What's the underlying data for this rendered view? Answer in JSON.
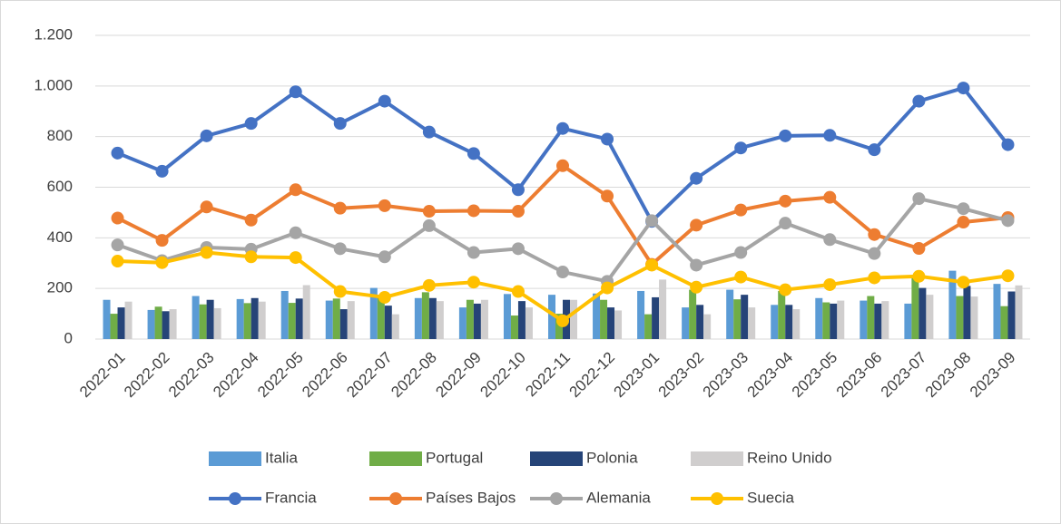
{
  "chart_data": {
    "type": "combo",
    "categories": [
      "2022-01",
      "2022-02",
      "2022-03",
      "2022-04",
      "2022-05",
      "2022-06",
      "2022-07",
      "2022-08",
      "2022-09",
      "2022-10",
      "2022-11",
      "2022-12",
      "2023-01",
      "2023-02",
      "2023-03",
      "2023-04",
      "2023-05",
      "2023-06",
      "2023-07",
      "2023-08",
      "2023-09"
    ],
    "ylim": [
      0,
      1200
    ],
    "yticks": [
      0,
      200,
      400,
      600,
      800,
      {
        "value": 1000,
        "label": "1.000"
      },
      {
        "value": 1200,
        "label": "1.200"
      }
    ],
    "grid": true,
    "series": [
      {
        "name": "Italia",
        "type": "bar",
        "color": "#5b9bd5",
        "values": [
          155,
          115,
          170,
          158,
          190,
          152,
          202,
          162,
          125,
          178,
          175,
          180,
          190,
          125,
          195,
          135,
          162,
          152,
          140,
          270,
          218
        ]
      },
      {
        "name": "Portugal",
        "type": "bar",
        "color": "#70ad47",
        "values": [
          100,
          128,
          137,
          142,
          143,
          160,
          170,
          185,
          155,
          93,
          100,
          155,
          98,
          195,
          157,
          190,
          145,
          170,
          250,
          170,
          130
        ]
      },
      {
        "name": "Polonia",
        "type": "bar",
        "color": "#264478",
        "values": [
          125,
          110,
          155,
          162,
          160,
          118,
          132,
          162,
          140,
          150,
          155,
          125,
          165,
          135,
          175,
          135,
          140,
          140,
          202,
          210,
          188
        ]
      },
      {
        "name": "Reino Unido",
        "type": "bar",
        "color": "#d0cece",
        "values": [
          148,
          118,
          122,
          148,
          213,
          150,
          98,
          150,
          155,
          125,
          155,
          113,
          235,
          98,
          125,
          118,
          152,
          150,
          175,
          168,
          212
        ]
      },
      {
        "name": "Francia",
        "type": "line",
        "color": "#4472c4",
        "values": [
          735,
          663,
          803,
          852,
          977,
          852,
          940,
          818,
          733,
          590,
          832,
          790,
          465,
          635,
          755,
          803,
          805,
          748,
          940,
          992,
          768
        ]
      },
      {
        "name": "Países Bajos",
        "type": "line",
        "color": "#ed7d31",
        "values": [
          478,
          390,
          522,
          470,
          590,
          517,
          527,
          505,
          507,
          505,
          685,
          565,
          295,
          450,
          510,
          545,
          560,
          413,
          358,
          462,
          480
        ]
      },
      {
        "name": "Alemania",
        "type": "line",
        "color": "#a5a5a5",
        "values": [
          372,
          310,
          362,
          355,
          420,
          357,
          325,
          448,
          342,
          357,
          265,
          228,
          468,
          292,
          342,
          458,
          393,
          338,
          555,
          515,
          468
        ]
      },
      {
        "name": "Suecia",
        "type": "line",
        "color": "#ffc000",
        "values": [
          308,
          302,
          342,
          325,
          322,
          188,
          165,
          212,
          225,
          188,
          72,
          202,
          292,
          205,
          245,
          195,
          215,
          242,
          248,
          225,
          250
        ]
      }
    ]
  }
}
